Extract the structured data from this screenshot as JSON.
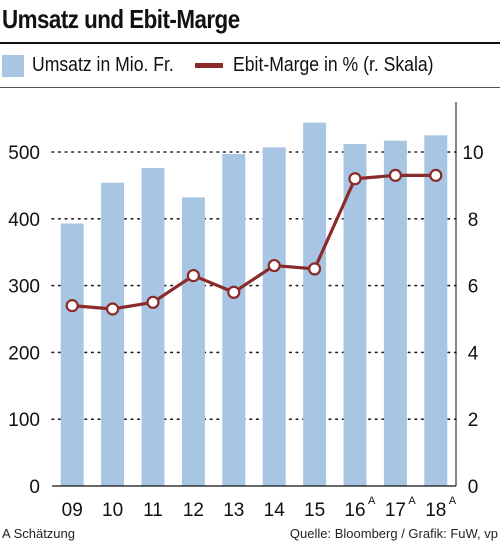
{
  "header": {
    "title": "Umsatz und Ebit-Marge"
  },
  "legend": {
    "bars": "Umsatz in Mio. Fr.",
    "line": "Ebit-Marge in % (r. Skala)"
  },
  "footer": {
    "footnote": "A Schätzung",
    "source": "Quelle: Bloomberg / Grafik: FuW, vp"
  },
  "colors": {
    "bar": "#a8c6e3",
    "line": "#8b2a2a",
    "marker_fill": "#ffffff"
  },
  "chart_data": {
    "type": "bar+line",
    "categories": [
      "09",
      "10",
      "11",
      "12",
      "13",
      "14",
      "15",
      "16",
      "17",
      "18"
    ],
    "category_superscripts": [
      "",
      "",
      "",
      "",
      "",
      "",
      "",
      "A",
      "A",
      "A"
    ],
    "series": [
      {
        "name": "Umsatz in Mio. Fr.",
        "type": "bar",
        "axis": "left",
        "values": [
          393,
          454,
          476,
          432,
          497,
          507,
          544,
          512,
          517,
          525
        ]
      },
      {
        "name": "Ebit-Marge in % (r. Skala)",
        "type": "line",
        "axis": "right",
        "values": [
          5.4,
          5.3,
          5.5,
          6.3,
          5.8,
          6.6,
          6.5,
          9.2,
          9.3,
          9.3
        ]
      }
    ],
    "y_left": {
      "min": 0,
      "max": 500,
      "ticks": [
        0,
        100,
        200,
        300,
        400,
        500
      ]
    },
    "y_right": {
      "min": 0,
      "max": 10,
      "ticks": [
        0,
        2,
        4,
        6,
        8,
        10
      ]
    },
    "grid": "dotted horizontal"
  }
}
